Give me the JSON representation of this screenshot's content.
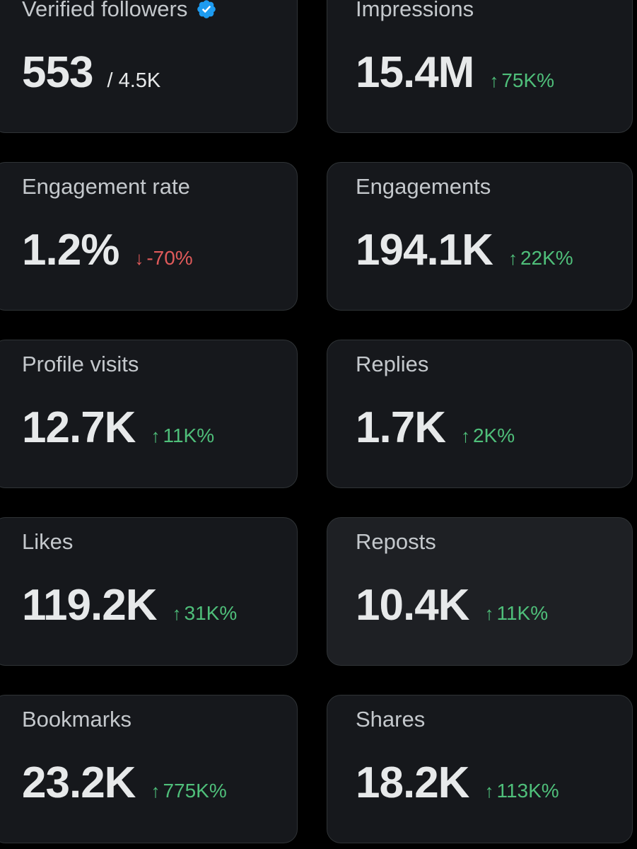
{
  "cards": [
    {
      "label": "Verified followers",
      "value": "553",
      "sub": "/ 4.5K"
    },
    {
      "label": "Impressions",
      "value": "15.4M",
      "delta": "75K%",
      "arrow": "↑"
    },
    {
      "label": "Engagement rate",
      "value": "1.2%",
      "delta": "-70%",
      "arrow": "↓"
    },
    {
      "label": "Engagements",
      "value": "194.1K",
      "delta": "22K%",
      "arrow": "↑"
    },
    {
      "label": "Profile visits",
      "value": "12.7K",
      "delta": "11K%",
      "arrow": "↑"
    },
    {
      "label": "Replies",
      "value": "1.7K",
      "delta": "2K%",
      "arrow": "↑"
    },
    {
      "label": "Likes",
      "value": "119.2K",
      "delta": "31K%",
      "arrow": "↑"
    },
    {
      "label": "Reposts",
      "value": "10.4K",
      "delta": "11K%",
      "arrow": "↑"
    },
    {
      "label": "Bookmarks",
      "value": "23.2K",
      "delta": "775K%",
      "arrow": "↑"
    },
    {
      "label": "Shares",
      "value": "18.2K",
      "delta": "113K%",
      "arrow": "↑"
    }
  ],
  "colors": {
    "positive": "#4fbf7a",
    "negative": "#e05a5a",
    "verified_badge": "#1d9bf0",
    "card_bg": "#16181c"
  },
  "icons": {
    "verified": "verified-badge-icon",
    "up": "arrow-up-icon",
    "down": "arrow-down-icon"
  }
}
